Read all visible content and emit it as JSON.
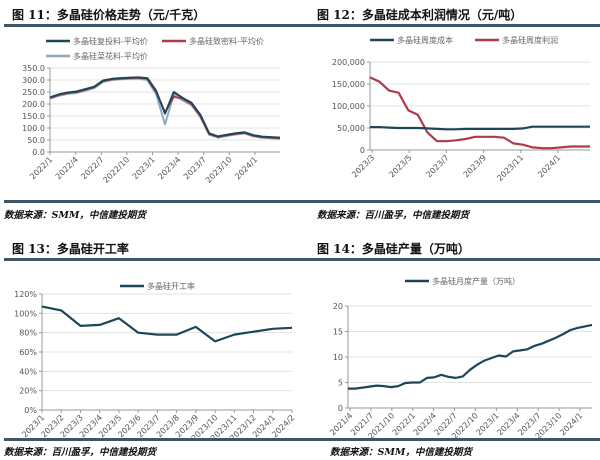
{
  "colors": {
    "navy": "#1e4658",
    "red": "#b0394c",
    "grey_blue": "#8ea9bf",
    "grid": "#e3e3e3",
    "axis": "#999999",
    "rule": "#3d5566"
  },
  "panels": [
    {
      "title": "图 11：多晶硅价格走势（元/千克）",
      "source": "数据来源：SMM，中信建投期货"
    },
    {
      "title": "图 12：多晶硅成本利润情况（元/吨）",
      "source": "数据来源：百川盈孚，中信建投期货"
    },
    {
      "title": "图 13：多晶硅开工率",
      "source": "数据来源：百川盈孚，中信建投期货"
    },
    {
      "title": "图 14：多晶硅产量（万吨）",
      "source": "数据来源：SMM，中信建投期货"
    }
  ],
  "chart_data": [
    {
      "type": "line",
      "title": "图 11：多晶硅价格走势（元/千克）",
      "xlabel": "",
      "ylabel": "元/千克",
      "ylim": [
        0,
        350
      ],
      "yticks": [
        "0.0",
        "50.0",
        "100.0",
        "150.0",
        "200.0",
        "250.0",
        "300.0",
        "350.0"
      ],
      "xticks": [
        "2022/1",
        "2022/4",
        "2022/7",
        "2022/10",
        "2023/1",
        "2023/4",
        "2023/7",
        "2023/10",
        "2024/1"
      ],
      "grid": true,
      "legend_position": "top",
      "x": [
        "2022/1",
        "2022/2",
        "2022/3",
        "2022/4",
        "2022/5",
        "2022/6",
        "2022/7",
        "2022/8",
        "2022/9",
        "2022/10",
        "2022/11",
        "2022/12",
        "2023/1a",
        "2023/1b",
        "2023/2",
        "2023/3",
        "2023/4",
        "2023/5",
        "2023/6",
        "2023/7",
        "2023/8",
        "2023/9",
        "2023/10",
        "2023/11",
        "2023/12",
        "2024/1",
        "2024/2"
      ],
      "series": [
        {
          "name": "多晶硅复投料-平均价",
          "color": "#1e4658",
          "values": [
            228,
            240,
            248,
            252,
            262,
            272,
            298,
            305,
            308,
            310,
            311,
            308,
            255,
            160,
            250,
            225,
            205,
            155,
            78,
            65,
            72,
            78,
            82,
            70,
            64,
            62,
            60
          ]
        },
        {
          "name": "多晶硅致密料-平均价",
          "color": "#b0394c",
          "values": [
            226,
            238,
            246,
            250,
            260,
            270,
            296,
            303,
            306,
            308,
            309,
            305,
            250,
            165,
            230,
            222,
            200,
            150,
            75,
            63,
            70,
            76,
            80,
            68,
            62,
            60,
            58
          ]
        },
        {
          "name": "多晶硅菜花料-平均价",
          "color": "#8ea9bf",
          "values": [
            222,
            234,
            242,
            246,
            256,
            266,
            292,
            300,
            303,
            305,
            306,
            300,
            240,
            115,
            240,
            215,
            195,
            145,
            72,
            60,
            67,
            73,
            77,
            65,
            59,
            57,
            55
          ]
        }
      ]
    },
    {
      "type": "line",
      "title": "图 12：多晶硅成本利润情况（元/吨）",
      "xlabel": "",
      "ylabel": "元/吨",
      "ylim": [
        0,
        200000
      ],
      "yticks": [
        "0",
        "50,000",
        "100,000",
        "150,000",
        "200,000"
      ],
      "xticks": [
        "2023/3",
        "2023/5",
        "2023/7",
        "2023/9",
        "2023/11",
        "2024/1"
      ],
      "grid": true,
      "legend_position": "top",
      "x": [
        "2023/3a",
        "2023/3b",
        "2023/4a",
        "2023/4b",
        "2023/5a",
        "2023/5b",
        "2023/6a",
        "2023/6b",
        "2023/7a",
        "2023/7b",
        "2023/8a",
        "2023/8b",
        "2023/9a",
        "2023/9b",
        "2023/10a",
        "2023/10b",
        "2023/11a",
        "2023/11b",
        "2023/12a",
        "2023/12b",
        "2024/1a",
        "2024/1b",
        "2024/2a",
        "2024/2b"
      ],
      "series": [
        {
          "name": "多晶硅周度成本",
          "color": "#1e4658",
          "values": [
            52000,
            52000,
            51000,
            50000,
            50000,
            50000,
            49000,
            48000,
            47000,
            47000,
            48000,
            48000,
            48000,
            48000,
            48000,
            48000,
            49000,
            53000,
            53000,
            53000,
            53000,
            53000,
            53000,
            53000
          ]
        },
        {
          "name": "多晶硅周度利润",
          "color": "#b0394c",
          "values": [
            165000,
            155000,
            135000,
            130000,
            90000,
            80000,
            40000,
            20000,
            20000,
            22000,
            25000,
            30000,
            30000,
            30000,
            28000,
            15000,
            12000,
            6000,
            4000,
            4000,
            6000,
            8000,
            8000,
            8000
          ]
        }
      ]
    },
    {
      "type": "line",
      "title": "图 13：多晶硅开工率",
      "xlabel": "",
      "ylabel": "%",
      "ylim": [
        0,
        120
      ],
      "yticks": [
        "0%",
        "20%",
        "40%",
        "60%",
        "80%",
        "100%",
        "120%"
      ],
      "grid": true,
      "legend_position": "top",
      "categories": [
        "2023/1",
        "2023/2",
        "2023/3",
        "2023/4",
        "2023/5",
        "2023/6",
        "2023/7",
        "2023/8",
        "2023/9",
        "2023/10",
        "2023/11",
        "2023/12",
        "2024/1",
        "2024/2"
      ],
      "series": [
        {
          "name": "多晶硅开工率",
          "color": "#1e4658",
          "values": [
            107,
            103,
            87,
            88,
            95,
            80,
            78,
            78,
            86,
            71,
            78,
            81,
            84,
            85
          ]
        }
      ]
    },
    {
      "type": "line",
      "title": "图 14：多晶硅产量（万吨）",
      "xlabel": "",
      "ylabel": "万吨",
      "ylim": [
        0,
        20
      ],
      "yticks": [
        "0",
        "5",
        "10",
        "15",
        "20"
      ],
      "xticks": [
        "2021/4",
        "2021/7",
        "2021/10",
        "2022/1",
        "2022/4",
        "2022/7",
        "2022/10",
        "2023/1",
        "2023/4",
        "2023/7",
        "2023/10",
        "2024/1"
      ],
      "grid": true,
      "legend_position": "top",
      "categories": [
        "2021/4",
        "2021/5",
        "2021/6",
        "2021/7",
        "2021/8",
        "2021/9",
        "2021/10",
        "2021/11",
        "2021/12",
        "2022/1",
        "2022/2",
        "2022/3",
        "2022/4",
        "2022/5",
        "2022/6",
        "2022/7",
        "2022/8",
        "2022/9",
        "2022/10",
        "2022/11",
        "2022/12",
        "2023/1",
        "2023/2",
        "2023/3",
        "2023/4",
        "2023/5",
        "2023/6",
        "2023/7",
        "2023/8",
        "2023/9",
        "2023/10",
        "2023/11",
        "2023/12",
        "2024/1",
        "2024/2"
      ],
      "series": [
        {
          "name": "多晶硅月度产量（万吨）",
          "color": "#1e4658",
          "values": [
            3.8,
            3.8,
            4.0,
            4.2,
            4.4,
            4.3,
            4.1,
            4.3,
            4.9,
            5.0,
            5.0,
            5.9,
            6.0,
            6.5,
            6.1,
            5.9,
            6.2,
            7.5,
            8.5,
            9.3,
            9.8,
            10.3,
            10.1,
            11.1,
            11.3,
            11.5,
            12.2,
            12.6,
            13.2,
            13.8,
            14.5,
            15.3,
            15.7,
            16.0,
            16.3
          ]
        }
      ]
    }
  ]
}
